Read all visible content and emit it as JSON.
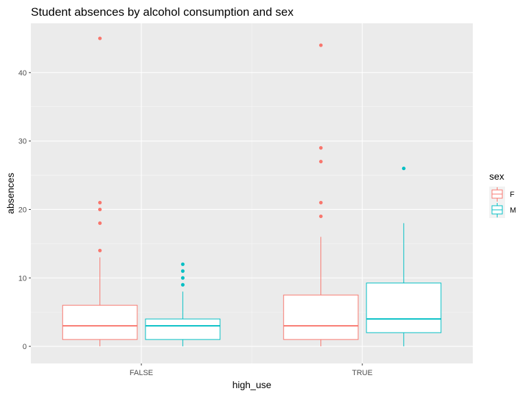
{
  "chart_data": {
    "type": "boxplot",
    "title": "Student absences by alcohol consumption and sex",
    "xlabel": "high_use",
    "ylabel": "absences",
    "categories": [
      "FALSE",
      "TRUE"
    ],
    "ylim": [
      -2.5,
      47.2
    ],
    "yticks": [
      0,
      10,
      20,
      30,
      40
    ],
    "grid": true,
    "legend": {
      "title": "sex",
      "position": "right",
      "entries": [
        {
          "label": "F",
          "color": "#F8766D"
        },
        {
          "label": "M",
          "color": "#00BFC4"
        }
      ]
    },
    "series": [
      {
        "name": "F",
        "color": "#F8766D",
        "boxes": [
          {
            "category": "FALSE",
            "min": 0,
            "q1": 1,
            "median": 3,
            "q3": 6,
            "max": 13,
            "outliers": [
              14,
              18,
              20,
              21,
              45
            ]
          },
          {
            "category": "TRUE",
            "min": 0,
            "q1": 1,
            "median": 3,
            "q3": 7.5,
            "max": 16,
            "outliers": [
              19,
              21,
              27,
              29,
              44
            ]
          }
        ]
      },
      {
        "name": "M",
        "color": "#00BFC4",
        "boxes": [
          {
            "category": "FALSE",
            "min": 0,
            "q1": 1,
            "median": 3,
            "q3": 4,
            "max": 8,
            "outliers": [
              9,
              10,
              11,
              12
            ]
          },
          {
            "category": "TRUE",
            "min": 0,
            "q1": 2,
            "median": 4,
            "q3": 9.25,
            "max": 18,
            "outliers": [
              26
            ]
          }
        ]
      }
    ]
  },
  "colors": {
    "panel_background": "#EBEBEB",
    "grid_major": "#FFFFFF",
    "tick_text": "#4D4D4D"
  }
}
